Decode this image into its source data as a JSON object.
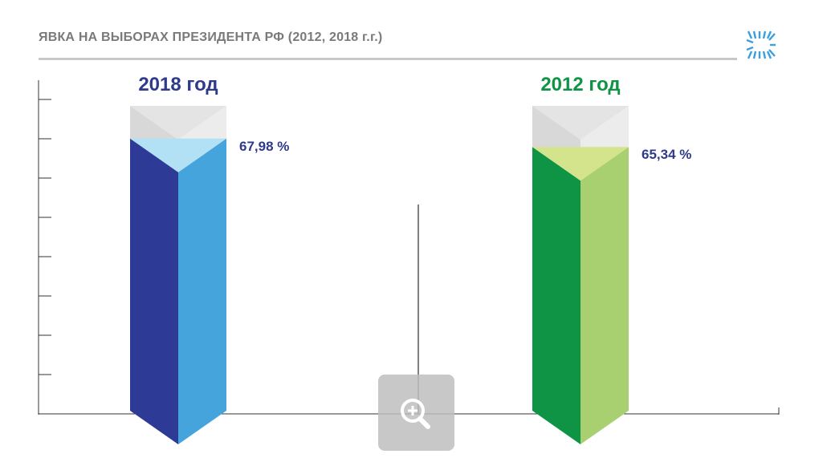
{
  "title": "ЯВКА НА ВЫБОРАХ ПРЕЗИДЕНТА РФ (2012, 2018 г.г.)",
  "logo_icon": "sun-logo-icon",
  "zoom_icon": "zoom-in-icon",
  "chart_data": {
    "type": "bar",
    "title": "ЯВКА НА ВЫБОРАХ ПРЕЗИДЕНТА РФ (2012, 2018 г.г.)",
    "categories": [
      "2018 год",
      "2012 год"
    ],
    "values": [
      67.98,
      65.34
    ],
    "value_labels": [
      "67,98 %",
      "65,34 %"
    ],
    "unit": "%",
    "ylim": [
      0,
      100
    ],
    "grid": false,
    "colors": {
      "2018": {
        "front": "#2e3b96",
        "side": "#45a4dc",
        "top": "#b2e0f4",
        "label": "#2e3a8a"
      },
      "2012": {
        "front": "#0e9444",
        "side": "#a8d070",
        "top": "#d4e48c",
        "label": "#0e9444"
      },
      "shell_front": "#d8d8d8",
      "shell_side": "#ececec"
    }
  }
}
